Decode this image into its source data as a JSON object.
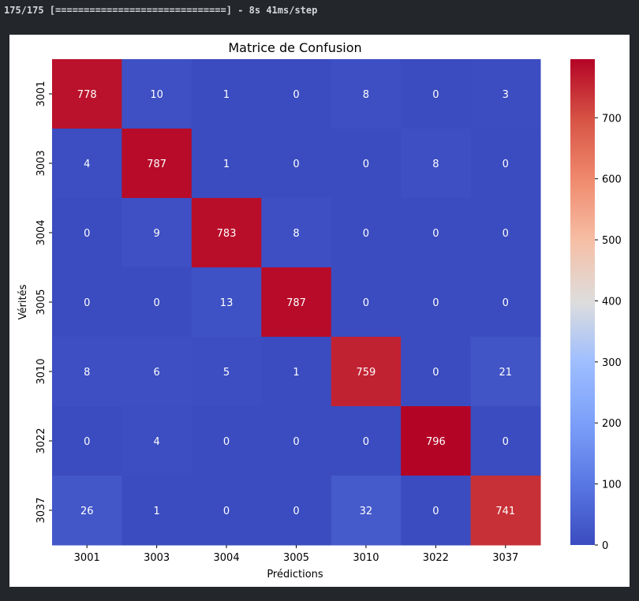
{
  "console": {
    "output_line": "175/175 [==============================] - 8s 41ms/step"
  },
  "chart_data": {
    "type": "heatmap",
    "title": "Matrice de Confusion",
    "xlabel": "Prédictions",
    "ylabel": "Vérités",
    "x_categories": [
      "3001",
      "3003",
      "3004",
      "3005",
      "3010",
      "3022",
      "3037"
    ],
    "y_categories": [
      "3001",
      "3003",
      "3004",
      "3005",
      "3010",
      "3022",
      "3037"
    ],
    "matrix": [
      [
        778,
        10,
        1,
        0,
        8,
        0,
        3
      ],
      [
        4,
        787,
        1,
        0,
        0,
        8,
        0
      ],
      [
        0,
        9,
        783,
        8,
        0,
        0,
        0
      ],
      [
        0,
        0,
        13,
        787,
        0,
        0,
        0
      ],
      [
        8,
        6,
        5,
        1,
        759,
        0,
        21
      ],
      [
        0,
        4,
        0,
        0,
        0,
        796,
        0
      ],
      [
        26,
        1,
        0,
        0,
        32,
        0,
        741
      ]
    ],
    "colormap": "coolwarm",
    "colormap_stops": [
      "#3b4cc0",
      "#dddddd",
      "#b40426"
    ],
    "vmin": 0,
    "vmax": 796,
    "colorbar_ticks": [
      0,
      100,
      200,
      300,
      400,
      500,
      600,
      700
    ],
    "annotation_light_color": "#ffffff",
    "annotation_dark_color": "#262626"
  }
}
